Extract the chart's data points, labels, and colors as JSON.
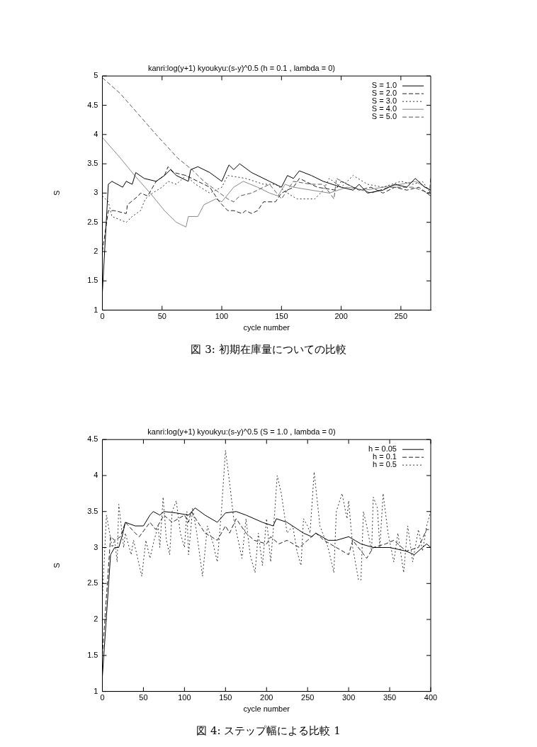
{
  "chart_data": [
    {
      "type": "line",
      "title": "kanri:log(y+1) kyoukyu:(s-y)^0.5 (h = 0.1 , lambda = 0)",
      "xlabel": "cycle number",
      "ylabel": "S",
      "xlim": [
        0,
        275
      ],
      "xticks": [
        0,
        50,
        100,
        150,
        200,
        250
      ],
      "ylim": [
        1,
        5
      ],
      "yticks": [
        1,
        1.5,
        2,
        2.5,
        3,
        3.5,
        4,
        4.5,
        5
      ],
      "grid": false,
      "legend": "top right",
      "annotations": [
        "図 3: 初期在庫量についての比較"
      ],
      "series": [
        {
          "name": "S = 1.0",
          "color": "#000000",
          "line_style": "solid",
          "x": [
            0,
            5,
            8,
            17,
            20,
            25,
            28,
            35,
            45,
            52,
            57,
            62,
            72,
            74,
            80,
            90,
            100,
            106,
            110,
            115,
            125,
            140,
            150,
            155,
            160,
            165,
            175,
            185,
            200,
            210,
            215,
            222,
            235,
            245,
            255,
            262,
            270,
            275
          ],
          "values": [
            1.3,
            3.15,
            3.2,
            3.1,
            3.2,
            3.15,
            3.35,
            3.25,
            3.2,
            3.3,
            3.4,
            3.3,
            3.2,
            3.4,
            3.45,
            3.35,
            3.2,
            3.48,
            3.4,
            3.5,
            3.35,
            3.2,
            3.1,
            3.3,
            3.25,
            3.38,
            3.3,
            3.2,
            3.1,
            3.05,
            3.15,
            3.0,
            3.05,
            3.15,
            3.1,
            3.25,
            3.1,
            3.05
          ]
        },
        {
          "name": "S = 2.0",
          "color": "#222222",
          "line_style": "dashed",
          "x": [
            0,
            5,
            10,
            20,
            21,
            30,
            32,
            38,
            45,
            52,
            55,
            60,
            70,
            80,
            90,
            98,
            105,
            110,
            117,
            120,
            125,
            130,
            135,
            145,
            150,
            160,
            165,
            180,
            195,
            200,
            215,
            225,
            235,
            245,
            255,
            265,
            275
          ],
          "values": [
            2.0,
            2.7,
            2.7,
            2.65,
            2.8,
            2.95,
            3.0,
            2.95,
            3.2,
            3.3,
            3.45,
            3.35,
            3.3,
            3.2,
            3.1,
            2.85,
            2.7,
            2.7,
            2.65,
            2.7,
            2.65,
            2.7,
            2.85,
            2.85,
            3.0,
            3.1,
            3.25,
            3.1,
            3.05,
            3.2,
            3.05,
            3.1,
            3.0,
            3.1,
            3.05,
            3.1,
            2.95
          ]
        },
        {
          "name": "S = 3.0",
          "color": "#333333",
          "line_style": "dotted",
          "x": [
            0,
            5,
            8,
            20,
            25,
            32,
            36,
            42,
            50,
            55,
            62,
            70,
            78,
            90,
            100,
            105,
            120,
            135,
            145,
            155,
            163,
            178,
            185,
            190,
            200,
            210,
            222,
            235,
            250,
            260,
            268,
            275
          ],
          "values": [
            2.95,
            2.85,
            2.6,
            2.5,
            2.6,
            2.7,
            2.9,
            3.0,
            3.1,
            3.2,
            3.15,
            3.3,
            3.15,
            3.0,
            3.1,
            3.3,
            3.25,
            3.15,
            3.15,
            3.0,
            2.9,
            2.9,
            3.05,
            3.25,
            3.1,
            3.3,
            3.15,
            3.1,
            3.2,
            3.15,
            3.2,
            3.0
          ]
        },
        {
          "name": "S = 4.0",
          "color": "#888888",
          "line_style": "solid",
          "x": [
            0,
            15,
            27,
            40,
            52,
            62,
            70,
            72,
            80,
            85,
            95,
            100,
            110,
            118,
            130,
            140,
            147,
            153,
            160,
            175,
            190,
            205,
            220,
            235,
            250,
            262,
            275
          ],
          "values": [
            3.95,
            3.6,
            3.3,
            3.0,
            2.7,
            2.5,
            2.42,
            2.6,
            2.6,
            2.8,
            2.9,
            2.85,
            3.1,
            3.2,
            3.1,
            3.0,
            2.95,
            3.15,
            3.1,
            3.05,
            3.0,
            3.1,
            3.05,
            3.1,
            3.15,
            3.2,
            3.05
          ]
        },
        {
          "name": "S = 5.0",
          "color": "#555555",
          "line_style": "dashed",
          "x": [
            0,
            15,
            30,
            45,
            63,
            75,
            85,
            95,
            105,
            110,
            115,
            125,
            140,
            150,
            160,
            175,
            185,
            194,
            196,
            210,
            225,
            240,
            260,
            274,
            275
          ],
          "values": [
            4.97,
            4.7,
            4.35,
            4.0,
            3.6,
            3.4,
            3.2,
            3.05,
            2.9,
            2.85,
            2.95,
            3.0,
            3.15,
            2.9,
            3.2,
            3.15,
            3.15,
            2.9,
            3.25,
            3.1,
            3.0,
            3.1,
            3.1,
            3.0,
            3.27
          ]
        }
      ]
    },
    {
      "type": "line",
      "title": "kanri:log(y+1) kyoukyu:(s-y)^0.5 (S = 1.0 , lambda = 0)",
      "xlabel": "cycle number",
      "ylabel": "S",
      "xlim": [
        0,
        400
      ],
      "xticks": [
        0,
        50,
        100,
        150,
        200,
        250,
        300,
        350,
        400
      ],
      "ylim": [
        1,
        4.5
      ],
      "yticks": [
        1,
        1.5,
        2,
        2.5,
        3,
        3.5,
        4,
        4.5
      ],
      "grid": false,
      "legend": "top right",
      "annotations": [
        "図 4: ステップ幅による比較 1"
      ],
      "series": [
        {
          "name": "h = 0.05",
          "color": "#000000",
          "line_style": "solid",
          "x": [
            0,
            10,
            15,
            20,
            25,
            28,
            40,
            50,
            58,
            62,
            70,
            75,
            90,
            105,
            113,
            125,
            140,
            150,
            163,
            175,
            195,
            208,
            212,
            225,
            245,
            255,
            260,
            275,
            285,
            300,
            315,
            330,
            350,
            370,
            380,
            390,
            395,
            400
          ],
          "values": [
            1.2,
            2.9,
            3.0,
            3.0,
            3.2,
            3.35,
            3.3,
            3.3,
            3.45,
            3.5,
            3.45,
            3.5,
            3.48,
            3.45,
            3.55,
            3.45,
            3.35,
            3.48,
            3.5,
            3.45,
            3.35,
            3.3,
            3.4,
            3.35,
            3.2,
            3.15,
            3.2,
            3.1,
            3.1,
            3.15,
            3.05,
            3.0,
            3.0,
            2.95,
            2.9,
            3.0,
            3.05,
            3.0
          ]
        },
        {
          "name": "h = 0.1",
          "color": "#222222",
          "line_style": "dashed",
          "x": [
            0,
            10,
            15,
            22,
            28,
            40,
            45,
            58,
            65,
            75,
            85,
            100,
            105,
            108,
            125,
            140,
            150,
            155,
            163,
            175,
            185,
            200,
            205,
            215,
            225,
            240,
            250,
            260,
            270,
            285,
            300,
            305,
            322,
            330,
            345,
            355,
            370,
            385,
            395,
            400
          ],
          "values": [
            1.5,
            3.15,
            3.1,
            3.15,
            3.35,
            3.2,
            3.15,
            3.35,
            3.25,
            3.45,
            3.35,
            3.45,
            3.35,
            3.5,
            3.2,
            3.1,
            3.3,
            3.2,
            3.4,
            3.2,
            3.1,
            3.05,
            3.15,
            3.05,
            3.1,
            3.0,
            3.1,
            3.2,
            3.1,
            3.0,
            2.9,
            3.1,
            2.85,
            3.0,
            3.05,
            3.1,
            2.95,
            3.0,
            3.25,
            3.25
          ]
        },
        {
          "name": "h = 0.5",
          "color": "#333333",
          "line_style": "dotted",
          "x": [
            0,
            5,
            12,
            15,
            18,
            20,
            26,
            28,
            35,
            38,
            43,
            48,
            53,
            58,
            63,
            68,
            70,
            74,
            78,
            82,
            85,
            90,
            95,
            100,
            103,
            105,
            110,
            115,
            122,
            128,
            135,
            140,
            145,
            150,
            155,
            160,
            170,
            175,
            180,
            186,
            190,
            195,
            200,
            205,
            210,
            213,
            218,
            225,
            232,
            237,
            242,
            245,
            250,
            253,
            258,
            265,
            275,
            282,
            285,
            292,
            298,
            300,
            305,
            312,
            315,
            318,
            322,
            328,
            330,
            335,
            338,
            342,
            348,
            355,
            360,
            367,
            372,
            378,
            385,
            390,
            395,
            400
          ],
          "values": [
            2.3,
            3.45,
            3.0,
            3.1,
            2.8,
            3.6,
            3.0,
            3.2,
            2.9,
            3.1,
            2.85,
            2.6,
            3.1,
            2.85,
            3.1,
            3.3,
            3.0,
            3.7,
            3.1,
            2.9,
            3.5,
            3.65,
            3.2,
            3.0,
            3.5,
            2.9,
            3.55,
            3.2,
            2.6,
            3.3,
            3.05,
            2.8,
            3.5,
            4.35,
            3.9,
            3.4,
            2.85,
            3.4,
            2.9,
            2.65,
            3.2,
            2.75,
            3.4,
            2.8,
            3.5,
            4.0,
            3.75,
            3.2,
            3.3,
            2.95,
            2.75,
            3.4,
            3.3,
            3.2,
            4.05,
            3.3,
            3.0,
            2.65,
            3.5,
            3.75,
            3.4,
            3.65,
            3.0,
            2.55,
            2.55,
            3.5,
            3.3,
            2.95,
            3.7,
            3.55,
            3.0,
            3.75,
            3.2,
            2.8,
            3.2,
            2.65,
            3.3,
            2.8,
            3.25,
            2.95,
            3.3,
            3.5
          ]
        }
      ]
    }
  ]
}
